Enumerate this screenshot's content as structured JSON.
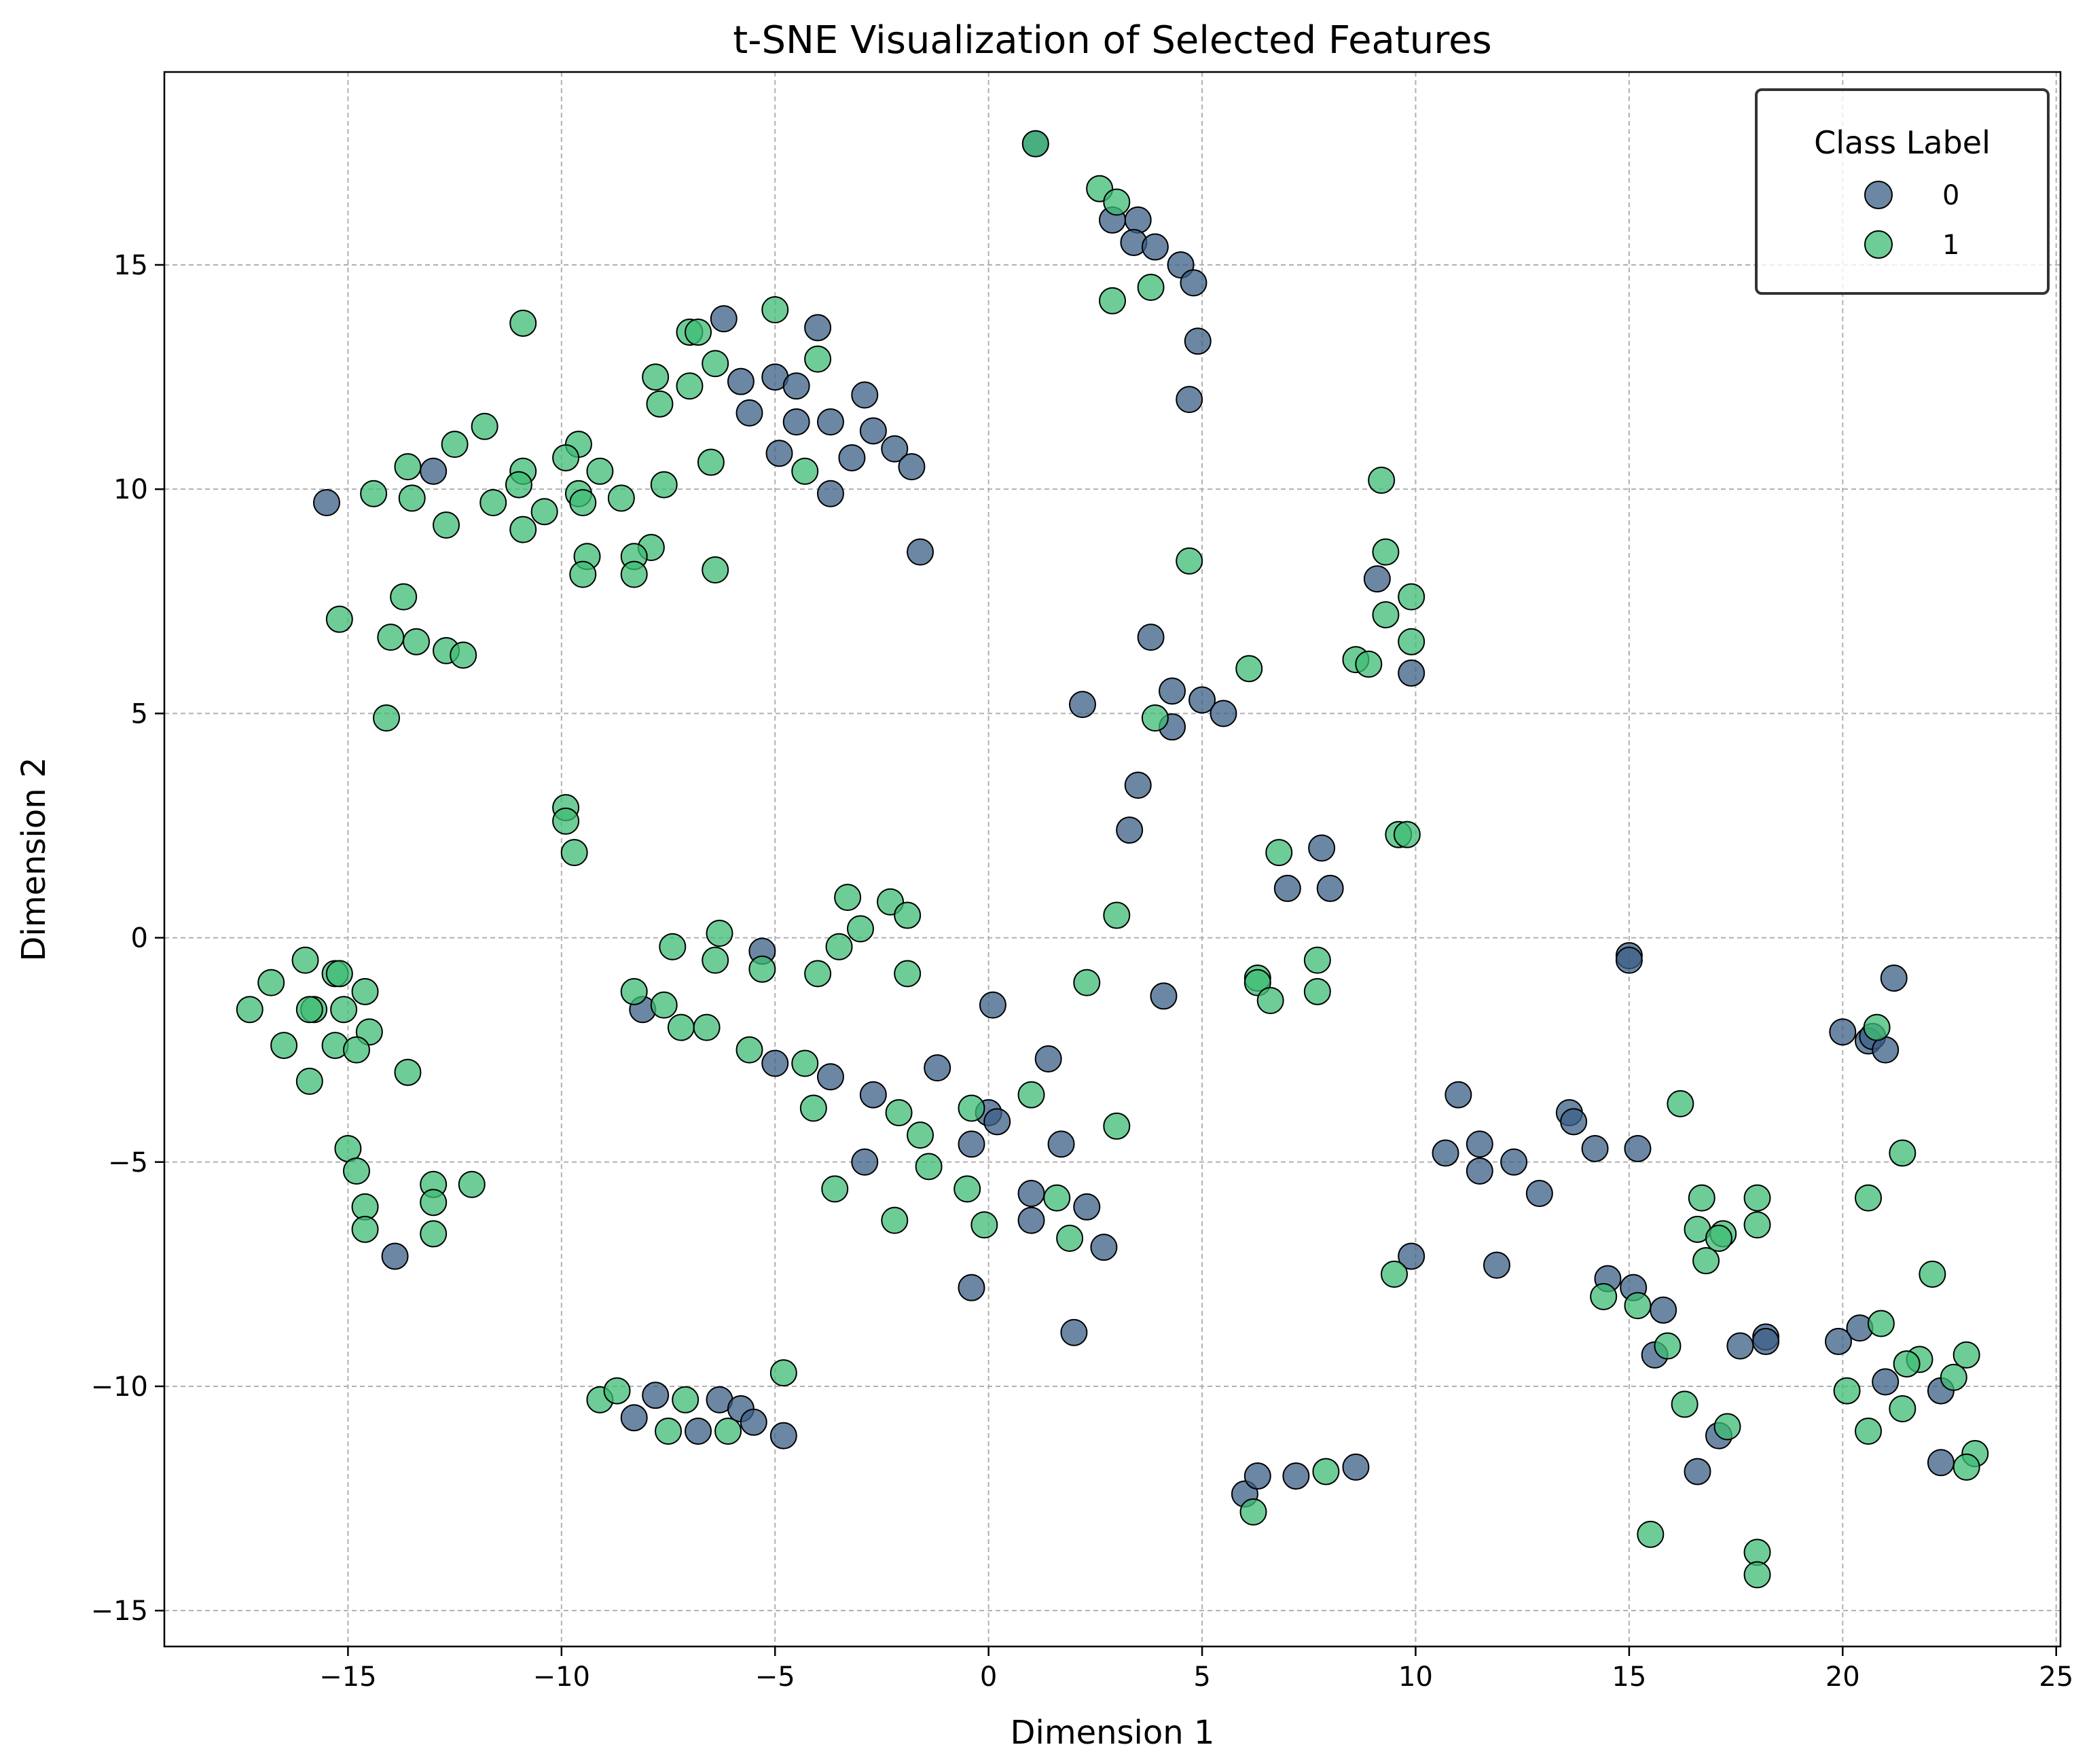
{
  "chart_data": {
    "type": "scatter",
    "title": "t-SNE Visualization of Selected Features",
    "xlabel": "Dimension 1",
    "ylabel": "Dimension 2",
    "xlim": [
      -19.3,
      25.1
    ],
    "ylim": [
      -15.8,
      19.3
    ],
    "xticks": [
      -15,
      -10,
      -5,
      0,
      5,
      10,
      15,
      20,
      25
    ],
    "yticks": [
      -15,
      -10,
      -5,
      0,
      5,
      10,
      15
    ],
    "xtick_labels": [
      "−15",
      "−10",
      "−5",
      "0",
      "5",
      "10",
      "15",
      "20",
      "25"
    ],
    "ytick_labels": [
      "−15",
      "−10",
      "−5",
      "0",
      "5",
      "10",
      "15"
    ],
    "grid": true,
    "legend": {
      "title": "Class Label",
      "placement": "top-right"
    },
    "series": [
      {
        "name": "0",
        "color": "#3b5f86",
        "points": [
          [
            1.1,
            17.7
          ],
          [
            2.9,
            16.0
          ],
          [
            3.5,
            16.0
          ],
          [
            3.4,
            15.5
          ],
          [
            3.9,
            15.4
          ],
          [
            4.5,
            15.0
          ],
          [
            4.8,
            14.6
          ],
          [
            4.9,
            13.3
          ],
          [
            4.7,
            12.0
          ],
          [
            -15.5,
            9.7
          ],
          [
            -13.0,
            10.4
          ],
          [
            -6.2,
            13.8
          ],
          [
            -4.0,
            13.6
          ],
          [
            -5.0,
            12.5
          ],
          [
            -5.8,
            12.4
          ],
          [
            -4.5,
            12.3
          ],
          [
            -2.9,
            12.1
          ],
          [
            -5.6,
            11.7
          ],
          [
            -4.5,
            11.5
          ],
          [
            -3.7,
            11.5
          ],
          [
            -2.7,
            11.3
          ],
          [
            -2.2,
            10.9
          ],
          [
            -4.9,
            10.8
          ],
          [
            -3.2,
            10.7
          ],
          [
            -1.8,
            10.5
          ],
          [
            -3.7,
            9.9
          ],
          [
            -1.6,
            8.6
          ],
          [
            3.8,
            6.7
          ],
          [
            4.3,
            5.5
          ],
          [
            5.0,
            5.3
          ],
          [
            2.2,
            5.2
          ],
          [
            5.5,
            5.0
          ],
          [
            4.3,
            4.7
          ],
          [
            3.5,
            3.4
          ],
          [
            3.3,
            2.4
          ],
          [
            9.1,
            8.0
          ],
          [
            9.9,
            5.9
          ],
          [
            7.8,
            2.0
          ],
          [
            7.0,
            1.1
          ],
          [
            8.0,
            1.1
          ],
          [
            -5.3,
            -0.3
          ],
          [
            -8.1,
            -1.6
          ],
          [
            0.1,
            -1.5
          ],
          [
            4.1,
            -1.3
          ],
          [
            -5.0,
            -2.8
          ],
          [
            1.4,
            -2.7
          ],
          [
            -1.2,
            -2.9
          ],
          [
            -3.7,
            -3.1
          ],
          [
            -2.7,
            -3.5
          ],
          [
            0.0,
            -3.9
          ],
          [
            0.2,
            -4.1
          ],
          [
            1.7,
            -4.6
          ],
          [
            -0.4,
            -4.6
          ],
          [
            -2.9,
            -5.0
          ],
          [
            1.0,
            -5.7
          ],
          [
            2.3,
            -6.0
          ],
          [
            1.0,
            -6.3
          ],
          [
            2.7,
            -6.9
          ],
          [
            -0.4,
            -7.8
          ],
          [
            2.0,
            -8.8
          ],
          [
            15.0,
            -0.4
          ],
          [
            15.0,
            -0.5
          ],
          [
            11.0,
            -3.5
          ],
          [
            13.6,
            -3.9
          ],
          [
            13.7,
            -4.1
          ],
          [
            11.5,
            -4.6
          ],
          [
            14.2,
            -4.7
          ],
          [
            15.2,
            -4.7
          ],
          [
            10.7,
            -4.8
          ],
          [
            12.3,
            -5.0
          ],
          [
            11.5,
            -5.2
          ],
          [
            12.9,
            -5.7
          ],
          [
            9.9,
            -7.1
          ],
          [
            11.9,
            -7.3
          ],
          [
            14.5,
            -7.6
          ],
          [
            15.1,
            -7.8
          ],
          [
            15.8,
            -8.3
          ],
          [
            17.6,
            -9.1
          ],
          [
            18.2,
            -8.9
          ],
          [
            18.2,
            -9.0
          ],
          [
            15.6,
            -9.3
          ],
          [
            17.1,
            -11.1
          ],
          [
            16.6,
            -11.9
          ],
          [
            21.2,
            -0.9
          ],
          [
            20.0,
            -2.1
          ],
          [
            20.6,
            -2.3
          ],
          [
            20.7,
            -2.2
          ],
          [
            21.0,
            -2.5
          ],
          [
            20.4,
            -8.7
          ],
          [
            19.9,
            -9.0
          ],
          [
            21.0,
            -9.9
          ],
          [
            22.3,
            -10.1
          ],
          [
            22.3,
            -11.7
          ],
          [
            -8.3,
            -10.7
          ],
          [
            -7.8,
            -10.2
          ],
          [
            -6.8,
            -11.0
          ],
          [
            -6.3,
            -10.3
          ],
          [
            -5.8,
            -10.5
          ],
          [
            -5.5,
            -10.8
          ],
          [
            -4.8,
            -11.1
          ],
          [
            -13.9,
            -7.1
          ],
          [
            6.0,
            -12.4
          ],
          [
            6.3,
            -12.0
          ],
          [
            7.2,
            -12.0
          ],
          [
            8.6,
            -11.8
          ]
        ]
      },
      {
        "name": "1",
        "color": "#3ebc74",
        "points": [
          [
            1.1,
            17.7
          ],
          [
            2.6,
            16.7
          ],
          [
            3.0,
            16.4
          ],
          [
            3.8,
            14.5
          ],
          [
            2.9,
            14.2
          ],
          [
            -10.9,
            13.7
          ],
          [
            -5.0,
            14.0
          ],
          [
            -7.0,
            13.5
          ],
          [
            -6.8,
            13.5
          ],
          [
            -4.0,
            12.9
          ],
          [
            -6.4,
            12.8
          ],
          [
            -7.8,
            12.5
          ],
          [
            -7.0,
            12.3
          ],
          [
            -7.7,
            11.9
          ],
          [
            -11.8,
            11.4
          ],
          [
            -12.5,
            11.0
          ],
          [
            -9.6,
            11.0
          ],
          [
            -9.9,
            10.7
          ],
          [
            -6.5,
            10.6
          ],
          [
            -13.6,
            10.5
          ],
          [
            -10.9,
            10.4
          ],
          [
            -9.1,
            10.4
          ],
          [
            -4.3,
            10.4
          ],
          [
            -11.0,
            10.1
          ],
          [
            -7.6,
            10.1
          ],
          [
            -14.4,
            9.9
          ],
          [
            -9.6,
            9.9
          ],
          [
            -8.6,
            9.8
          ],
          [
            -13.5,
            9.8
          ],
          [
            -11.6,
            9.7
          ],
          [
            -9.5,
            9.7
          ],
          [
            -10.4,
            9.5
          ],
          [
            -12.7,
            9.2
          ],
          [
            -10.9,
            9.1
          ],
          [
            -7.9,
            8.7
          ],
          [
            -8.3,
            8.5
          ],
          [
            -9.4,
            8.5
          ],
          [
            -6.4,
            8.2
          ],
          [
            -9.5,
            8.1
          ],
          [
            -8.3,
            8.1
          ],
          [
            -13.7,
            7.6
          ],
          [
            -15.2,
            7.1
          ],
          [
            -14.0,
            6.7
          ],
          [
            -13.4,
            6.6
          ],
          [
            -12.7,
            6.4
          ],
          [
            -12.3,
            6.3
          ],
          [
            -14.1,
            4.9
          ],
          [
            4.7,
            8.4
          ],
          [
            3.9,
            4.9
          ],
          [
            6.1,
            6.0
          ],
          [
            9.2,
            10.2
          ],
          [
            9.3,
            8.6
          ],
          [
            9.9,
            7.6
          ],
          [
            9.3,
            7.2
          ],
          [
            9.9,
            6.6
          ],
          [
            8.6,
            6.2
          ],
          [
            8.9,
            6.1
          ],
          [
            9.6,
            2.3
          ],
          [
            9.8,
            2.3
          ],
          [
            6.8,
            1.9
          ],
          [
            3.0,
            0.5
          ],
          [
            -9.9,
            2.9
          ],
          [
            -9.9,
            2.6
          ],
          [
            -9.7,
            1.9
          ],
          [
            -3.3,
            0.9
          ],
          [
            -2.3,
            0.8
          ],
          [
            -1.9,
            0.5
          ],
          [
            -3.0,
            0.2
          ],
          [
            -6.3,
            0.1
          ],
          [
            -7.4,
            -0.2
          ],
          [
            -3.5,
            -0.2
          ],
          [
            -6.4,
            -0.5
          ],
          [
            -5.3,
            -0.7
          ],
          [
            -4.0,
            -0.8
          ],
          [
            -1.9,
            -0.8
          ],
          [
            2.3,
            -1.0
          ],
          [
            -8.3,
            -1.2
          ],
          [
            -7.6,
            -1.5
          ],
          [
            -7.2,
            -2.0
          ],
          [
            -6.6,
            -2.0
          ],
          [
            -5.6,
            -2.5
          ],
          [
            -4.3,
            -2.8
          ],
          [
            -4.1,
            -3.8
          ],
          [
            1.0,
            -3.5
          ],
          [
            -0.4,
            -3.8
          ],
          [
            3.0,
            -4.2
          ],
          [
            -2.1,
            -3.9
          ],
          [
            -1.6,
            -4.4
          ],
          [
            -1.4,
            -5.1
          ],
          [
            -3.6,
            -5.6
          ],
          [
            -0.5,
            -5.6
          ],
          [
            1.6,
            -5.8
          ],
          [
            -2.2,
            -6.3
          ],
          [
            -0.1,
            -6.4
          ],
          [
            1.9,
            -6.7
          ],
          [
            6.3,
            -0.9
          ],
          [
            6.3,
            -1.0
          ],
          [
            6.6,
            -1.4
          ],
          [
            7.7,
            -0.5
          ],
          [
            7.7,
            -1.2
          ],
          [
            -15.3,
            -0.8
          ],
          [
            -15.2,
            -0.8
          ],
          [
            -16.0,
            -0.5
          ],
          [
            -16.8,
            -1.0
          ],
          [
            -17.3,
            -1.6
          ],
          [
            -15.8,
            -1.6
          ],
          [
            -15.9,
            -1.6
          ],
          [
            -15.1,
            -1.6
          ],
          [
            -14.6,
            -1.2
          ],
          [
            -14.5,
            -2.1
          ],
          [
            -16.5,
            -2.4
          ],
          [
            -15.3,
            -2.4
          ],
          [
            -14.8,
            -2.5
          ],
          [
            -13.6,
            -3.0
          ],
          [
            -15.9,
            -3.2
          ],
          [
            -15.0,
            -4.7
          ],
          [
            -14.8,
            -5.2
          ],
          [
            -13.0,
            -5.5
          ],
          [
            -12.1,
            -5.5
          ],
          [
            -13.0,
            -5.9
          ],
          [
            -14.6,
            -6.0
          ],
          [
            -14.6,
            -6.5
          ],
          [
            -13.0,
            -6.6
          ],
          [
            -9.1,
            -10.3
          ],
          [
            -8.7,
            -10.1
          ],
          [
            -7.5,
            -11.0
          ],
          [
            -7.1,
            -10.3
          ],
          [
            -6.1,
            -11.0
          ],
          [
            -4.8,
            -9.7
          ],
          [
            6.2,
            -12.8
          ],
          [
            7.9,
            -11.9
          ],
          [
            16.2,
            -3.7
          ],
          [
            21.4,
            -4.8
          ],
          [
            20.6,
            -5.8
          ],
          [
            20.8,
            -2.0
          ],
          [
            16.7,
            -5.8
          ],
          [
            16.6,
            -6.5
          ],
          [
            17.2,
            -6.6
          ],
          [
            17.1,
            -6.7
          ],
          [
            18.0,
            -5.8
          ],
          [
            18.0,
            -6.4
          ],
          [
            16.8,
            -7.2
          ],
          [
            14.4,
            -8.0
          ],
          [
            15.2,
            -8.2
          ],
          [
            9.5,
            -7.5
          ],
          [
            22.1,
            -7.5
          ],
          [
            20.9,
            -8.6
          ],
          [
            15.9,
            -9.1
          ],
          [
            21.8,
            -9.4
          ],
          [
            21.5,
            -9.5
          ],
          [
            22.6,
            -9.8
          ],
          [
            22.9,
            -9.3
          ],
          [
            20.1,
            -10.1
          ],
          [
            16.3,
            -10.4
          ],
          [
            21.4,
            -10.5
          ],
          [
            17.3,
            -10.9
          ],
          [
            20.6,
            -11.0
          ],
          [
            23.1,
            -11.5
          ],
          [
            22.9,
            -11.8
          ],
          [
            15.5,
            -13.3
          ],
          [
            18.0,
            -13.7
          ],
          [
            18.0,
            -14.2
          ]
        ]
      }
    ]
  }
}
